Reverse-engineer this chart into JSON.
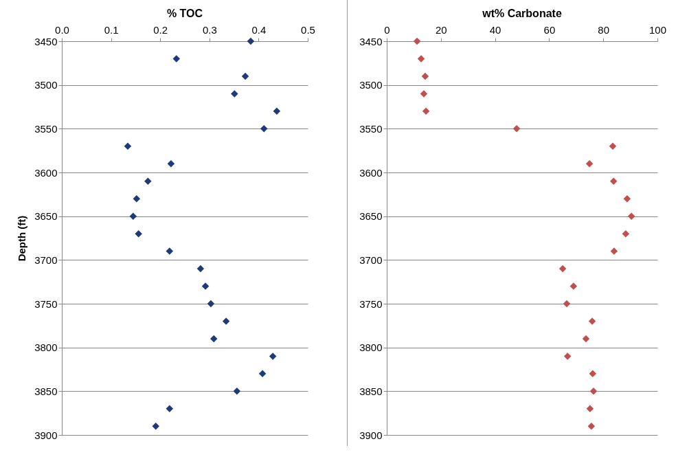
{
  "chart_data": [
    {
      "type": "scatter",
      "title": "% TOC",
      "ylabel": "Depth (ft)",
      "xlim": [
        0,
        0.5
      ],
      "xticks": [
        {
          "value": 0,
          "label": "0.0"
        },
        {
          "value": 0.1,
          "label": "0.1"
        },
        {
          "value": 0.2,
          "label": "0.2"
        },
        {
          "value": 0.3,
          "label": "0.3"
        },
        {
          "value": 0.4,
          "label": "0.4"
        },
        {
          "value": 0.5,
          "label": "0.5"
        }
      ],
      "ylim": [
        3900,
        3450
      ],
      "yticks": [
        3450,
        3500,
        3550,
        3600,
        3650,
        3700,
        3750,
        3800,
        3850,
        3900
      ],
      "grid": "y",
      "legend": false,
      "marker": "diamond",
      "series": [
        {
          "color": "#1f3a78",
          "x": [
            0.384,
            0.233,
            0.373,
            0.351,
            0.437,
            0.411,
            0.134,
            0.222,
            0.175,
            0.152,
            0.145,
            0.156,
            0.219,
            0.282,
            0.292,
            0.303,
            0.334,
            0.309,
            0.429,
            0.408,
            0.356,
            0.219,
            0.191
          ],
          "values": [
            3450,
            3470,
            3490,
            3510,
            3530,
            3550,
            3570,
            3590,
            3610,
            3630,
            3650,
            3670,
            3690,
            3710,
            3730,
            3750,
            3770,
            3790,
            3810,
            3830,
            3850,
            3870,
            3890
          ]
        }
      ]
    },
    {
      "type": "scatter",
      "title": "wt% Carbonate",
      "xlim": [
        0,
        100
      ],
      "xticks": [
        0,
        20,
        40,
        60,
        80,
        100
      ],
      "ylim": [
        3900,
        3450
      ],
      "yticks": [
        3450,
        3500,
        3550,
        3600,
        3650,
        3700,
        3750,
        3800,
        3850,
        3900
      ],
      "grid": "y",
      "legend": false,
      "marker": "diamond",
      "series": [
        {
          "color": "#c0504d",
          "x": [
            11.2,
            12.7,
            14.2,
            13.7,
            14.5,
            48,
            83.5,
            74.9,
            83.8,
            88.8,
            90.4,
            88.3,
            84,
            65,
            69,
            66.5,
            75.9,
            73.6,
            66.8,
            76.1,
            76.4,
            75.1,
            75.6
          ],
          "values": [
            3450,
            3470,
            3490,
            3510,
            3530,
            3550,
            3570,
            3590,
            3610,
            3630,
            3650,
            3670,
            3690,
            3710,
            3730,
            3750,
            3770,
            3790,
            3810,
            3830,
            3850,
            3870,
            3890
          ]
        }
      ]
    }
  ]
}
